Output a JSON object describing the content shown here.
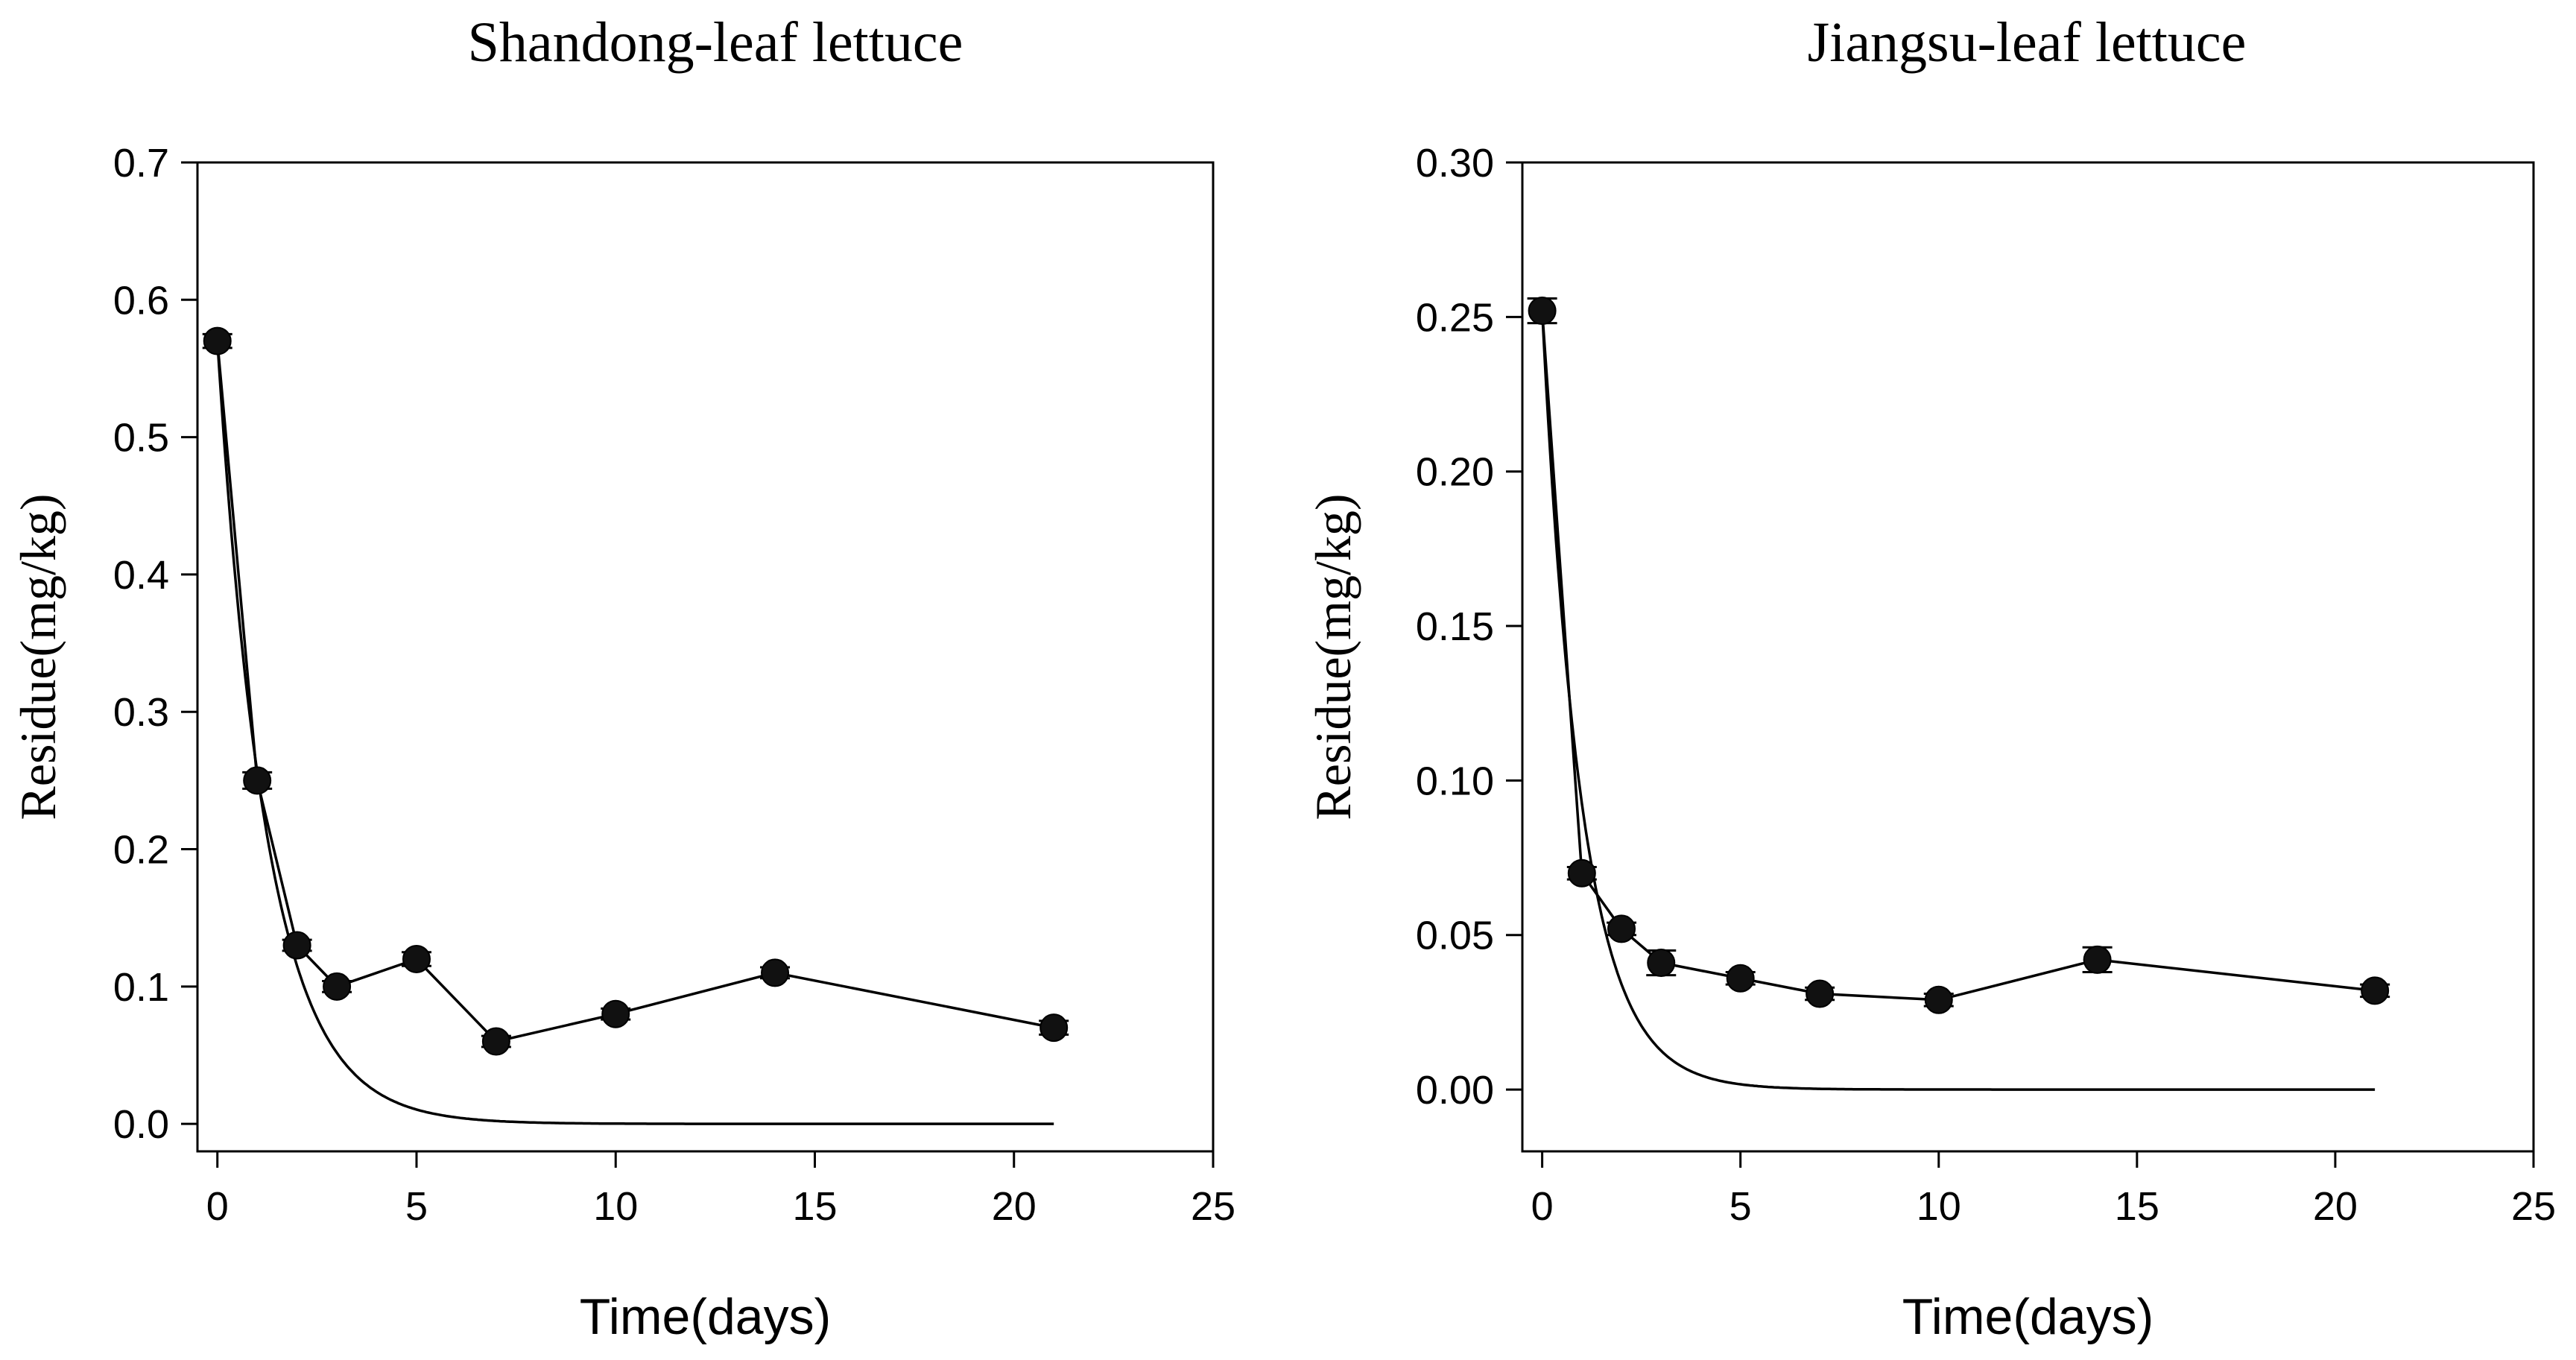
{
  "chart_data": [
    {
      "type": "line",
      "title": "Shandong-leaf lettuce",
      "xlabel": "Time(days)",
      "ylabel": "Residue(mg/kg)",
      "xlim": [
        -0.5,
        25
      ],
      "ylim": [
        -0.02,
        0.7
      ],
      "xticks": [
        0,
        5,
        10,
        15,
        20,
        25
      ],
      "xtick_labels": [
        "0",
        "5",
        "10",
        "15",
        "20",
        "25"
      ],
      "yticks": [
        0,
        0.1,
        0.2,
        0.3,
        0.4,
        0.5,
        0.6,
        0.7
      ],
      "ytick_labels": [
        "0.0",
        "0.1",
        "0.2",
        "0.3",
        "0.4",
        "0.5",
        "0.6",
        "0.7"
      ],
      "grid": false,
      "series": [
        {
          "kind": "observed-with-error",
          "x": [
            0,
            1,
            2,
            3,
            5,
            7,
            10,
            14,
            21
          ],
          "y": [
            0.57,
            0.25,
            0.13,
            0.1,
            0.12,
            0.06,
            0.08,
            0.11,
            0.07
          ],
          "err": [
            0.005,
            0.006,
            0.004,
            0.004,
            0.005,
            0.004,
            0.004,
            0.004,
            0.005
          ]
        },
        {
          "kind": "first-order-fit",
          "c0": 0.57,
          "k": 0.8,
          "x_range": [
            0,
            21
          ]
        }
      ]
    },
    {
      "type": "line",
      "title": "Jiangsu-leaf lettuce",
      "xlabel": "Time(days)",
      "ylabel": "Residue(mg/kg)",
      "xlim": [
        -0.5,
        25
      ],
      "ylim": [
        -0.02,
        0.3
      ],
      "xticks": [
        0,
        5,
        10,
        15,
        20,
        25
      ],
      "xtick_labels": [
        "0",
        "5",
        "10",
        "15",
        "20",
        "25"
      ],
      "yticks": [
        0,
        0.05,
        0.1,
        0.15,
        0.2,
        0.25,
        0.3
      ],
      "ytick_labels": [
        "0.00",
        "0.05",
        "0.10",
        "0.15",
        "0.20",
        "0.25",
        "0.30"
      ],
      "grid": false,
      "series": [
        {
          "kind": "observed-with-error",
          "x": [
            0,
            1,
            2,
            3,
            5,
            7,
            10,
            14,
            21
          ],
          "y": [
            0.252,
            0.07,
            0.052,
            0.041,
            0.036,
            0.031,
            0.029,
            0.042,
            0.032
          ],
          "err": [
            0.004,
            0.002,
            0.002,
            0.004,
            0.002,
            0.002,
            0.002,
            0.004,
            0.002
          ]
        },
        {
          "kind": "first-order-fit",
          "c0": 0.252,
          "k": 1.0,
          "x_range": [
            0,
            21
          ]
        }
      ]
    }
  ]
}
